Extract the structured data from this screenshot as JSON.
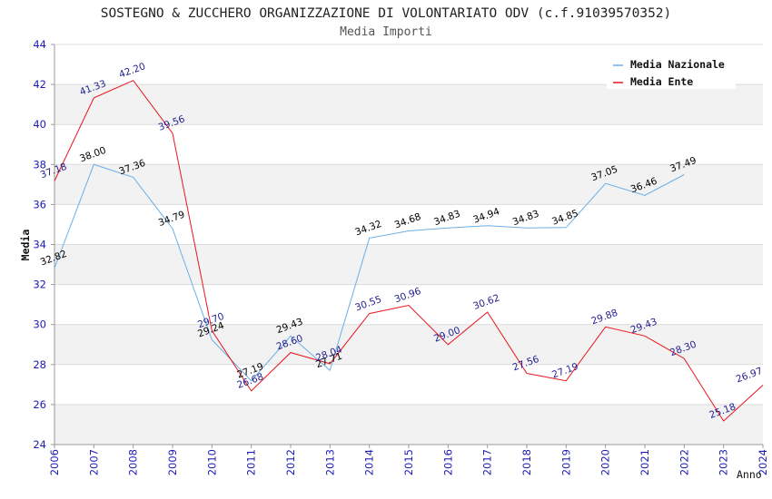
{
  "chart_data": {
    "type": "line",
    "title": "SOSTEGNO & ZUCCHERO ORGANIZZAZIONE DI VOLONTARIATO ODV (c.f.91039570352)",
    "subtitle": "Media Importi",
    "xlabel": "Anno",
    "ylabel": "Media",
    "x": [
      2006,
      2007,
      2008,
      2009,
      2010,
      2011,
      2012,
      2013,
      2014,
      2015,
      2016,
      2017,
      2018,
      2019,
      2020,
      2021,
      2022,
      2023,
      2024
    ],
    "ylim": [
      24,
      44
    ],
    "yticks": [
      24,
      26,
      28,
      30,
      32,
      34,
      36,
      38,
      40,
      42,
      44
    ],
    "grid": true,
    "legend_position": "top-right",
    "series": [
      {
        "name": "Media Nazionale",
        "color": "#6aaee6",
        "label_color": "#000000",
        "values": [
          32.82,
          38.0,
          37.36,
          34.79,
          29.24,
          27.19,
          29.43,
          27.71,
          34.32,
          34.68,
          34.83,
          34.94,
          34.83,
          34.85,
          37.05,
          36.46,
          37.49,
          null,
          null
        ]
      },
      {
        "name": "Media Ente",
        "color": "#e8141c",
        "label_color": "#1f1f8f",
        "values": [
          37.18,
          41.33,
          42.2,
          39.56,
          29.7,
          26.68,
          28.6,
          28.04,
          30.55,
          30.96,
          29.0,
          30.62,
          27.56,
          27.19,
          29.88,
          29.43,
          28.3,
          25.18,
          26.97
        ]
      }
    ]
  },
  "colors": {
    "band": "#f2f2f2",
    "gridline": "#dcdcdc",
    "axis": "#9a9a9a",
    "tick_label": "#1c1cb4"
  }
}
